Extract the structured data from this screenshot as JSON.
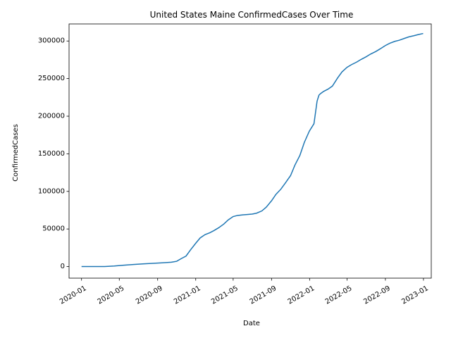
{
  "chart_data": {
    "type": "line",
    "title": "United States Maine ConfirmedCases Over Time",
    "xlabel": "Date",
    "ylabel": "ConfirmedCases",
    "xlim": [
      "2019-11-22",
      "2023-01-26"
    ],
    "ylim": [
      -15400,
      322700
    ],
    "x_ticks": [
      "2020-01",
      "2020-05",
      "2020-09",
      "2021-01",
      "2021-05",
      "2021-09",
      "2022-01",
      "2022-05",
      "2022-09",
      "2023-01"
    ],
    "y_ticks": [
      0,
      50000,
      100000,
      150000,
      200000,
      250000,
      300000
    ],
    "grid": false,
    "line_color": "#1f77b4",
    "series": [
      {
        "x": [
          "2020-01-01",
          "2020-03-15",
          "2020-04-15",
          "2020-05-15",
          "2020-06-15",
          "2020-07-15",
          "2020-08-15",
          "2020-09-15",
          "2020-10-15",
          "2020-11-01",
          "2020-11-15",
          "2020-12-01",
          "2020-12-15",
          "2020-12-31",
          "2021-01-15",
          "2021-01-31",
          "2021-02-15",
          "2021-03-01",
          "2021-03-15",
          "2021-04-01",
          "2021-04-15",
          "2021-05-01",
          "2021-05-15",
          "2021-06-01",
          "2021-06-15",
          "2021-07-01",
          "2021-07-15",
          "2021-08-01",
          "2021-08-15",
          "2021-09-01",
          "2021-09-15",
          "2021-10-01",
          "2021-10-15",
          "2021-11-01",
          "2021-11-15",
          "2021-12-01",
          "2021-12-15",
          "2021-12-31",
          "2022-01-15",
          "2022-01-25",
          "2022-01-31",
          "2022-02-05",
          "2022-02-15",
          "2022-03-01",
          "2022-03-15",
          "2022-04-01",
          "2022-04-15",
          "2022-05-01",
          "2022-05-15",
          "2022-06-01",
          "2022-06-15",
          "2022-07-01",
          "2022-07-15",
          "2022-08-01",
          "2022-08-15",
          "2022-09-01",
          "2022-09-15",
          "2022-10-01",
          "2022-10-15",
          "2022-11-01",
          "2022-11-15",
          "2022-12-01",
          "2022-12-15",
          "2022-12-31"
        ],
        "y": [
          0,
          100,
          800,
          1800,
          2800,
          3600,
          4300,
          5000,
          5800,
          7000,
          10500,
          14000,
          22000,
          30500,
          38000,
          42500,
          45000,
          48000,
          51500,
          56500,
          62000,
          66500,
          68000,
          68800,
          69200,
          69800,
          71000,
          74000,
          79000,
          87500,
          96000,
          103000,
          111000,
          121000,
          135000,
          148000,
          165000,
          180000,
          190000,
          220000,
          228000,
          230000,
          233000,
          236000,
          240000,
          251000,
          259000,
          265000,
          268500,
          272000,
          275500,
          279000,
          282500,
          286000,
          289500,
          294000,
          297000,
          299500,
          301000,
          303500,
          305500,
          307000,
          308500,
          310000
        ]
      }
    ]
  }
}
